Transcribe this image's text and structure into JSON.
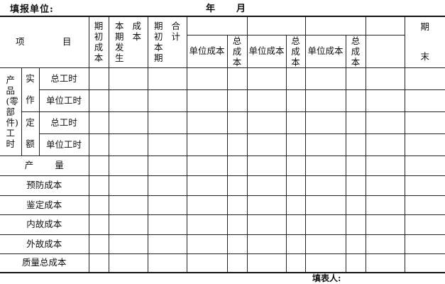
{
  "header": {
    "unit_label": "填报单位:",
    "year_label": "年",
    "month_label": "月"
  },
  "table": {
    "item_header": {
      "left": "项",
      "right": "目"
    },
    "col_opening_cost": "期初成本",
    "col_current_cost": {
      "left": "本期发生",
      "right": "成本"
    },
    "col_total": {
      "left": "期初本期",
      "right": "合计"
    },
    "unit_cost": "单位成本",
    "total_cost": "总成本",
    "col_end": {
      "top": "期",
      "bottom": "末"
    },
    "hours_group": "产品(零部件)工时",
    "actual": "实作",
    "standard": "定额",
    "total_hours": "总工时",
    "unit_hours": "单位工时",
    "rows": [
      "产量",
      "预防成本",
      "鉴定成本",
      "内故成本",
      "外故成本",
      "质量总成本"
    ]
  },
  "footer": {
    "filler_label": "填表人:"
  }
}
